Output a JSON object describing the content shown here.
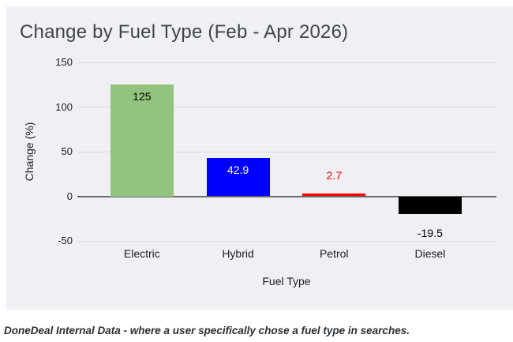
{
  "page": {
    "footer_note": "DoneDeal Internal Data - where a user specifically chose a fuel type in searches."
  },
  "chart_data": {
    "type": "bar",
    "title": "Change by Fuel Type (Feb - Apr 2026)",
    "xlabel": "Fuel Type",
    "ylabel": "Change (%)",
    "categories": [
      "Electric",
      "Hybrid",
      "Petrol",
      "Diesel"
    ],
    "values": [
      125,
      42.9,
      2.7,
      -19.5
    ],
    "value_labels": [
      "125",
      "42.9",
      "2.7",
      "-19.5"
    ],
    "bar_colors": [
      "#93c47d",
      "#0000ff",
      "#ff0000",
      "#000000"
    ],
    "value_label_colors": [
      "#000000",
      "#ffffff",
      "#ff0000",
      "#000000"
    ],
    "value_label_positions": [
      "inside-top",
      "inside-top",
      "above",
      "below"
    ],
    "yticks": [
      150,
      100,
      50,
      0,
      -50
    ],
    "ylim": [
      -50,
      150
    ],
    "grid": true,
    "legend": "none",
    "colors": {
      "card_background": "#f0f0f4",
      "gridline": "#d9dade",
      "zero_line": "#67696e",
      "title_text": "#3e454d",
      "axis_text": "#1b1d1f"
    }
  }
}
